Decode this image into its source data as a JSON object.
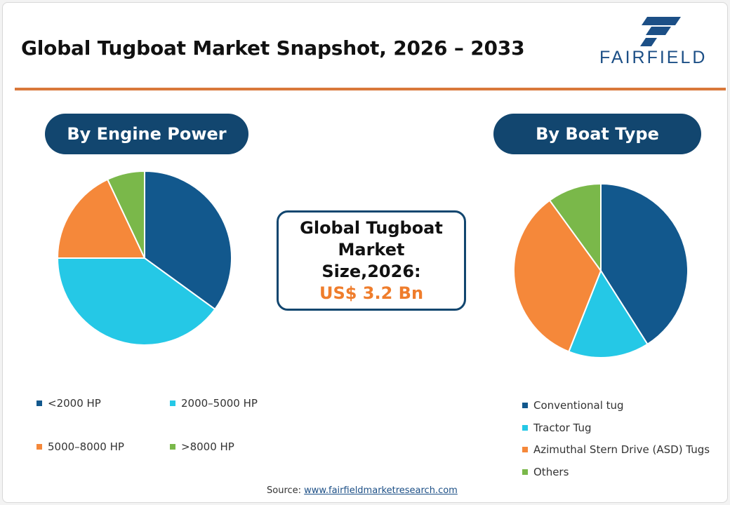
{
  "header": {
    "title": "Global Tugboat Market Snapshot, 2026 – 2033",
    "logo_text": "FAIRFIELD"
  },
  "colors": {
    "navy": "#12466f",
    "accent_orange": "#d9783a",
    "value_orange": "#ef7d2c"
  },
  "center_box": {
    "title": "Global Tugboat Market Size,2026:",
    "value": "US$ 3.2 Bn"
  },
  "footer": {
    "source_label": "Source:",
    "source_link": "www.fairfieldmarketresearch.com"
  },
  "chart_data": [
    {
      "type": "pie",
      "title": "By Engine Power",
      "categories": [
        "<2000 HP",
        "2000–5000 HP",
        "5000–8000 HP",
        ">8000 HP"
      ],
      "values": [
        35,
        40,
        18,
        7
      ],
      "colors": [
        "#12588d",
        "#25c8e6",
        "#f5883a",
        "#7ab84a"
      ],
      "start_angle_deg": 0,
      "legend_position": "bottom"
    },
    {
      "type": "pie",
      "title": "By Boat Type",
      "categories": [
        "Conventional tug",
        "Tractor Tug",
        "Azimuthal Stern Drive (ASD) Tugs",
        "Others"
      ],
      "values": [
        41,
        15,
        34,
        10
      ],
      "colors": [
        "#12588d",
        "#25c8e6",
        "#f5883a",
        "#7ab84a"
      ],
      "start_angle_deg": 0,
      "legend_position": "bottom-right"
    }
  ]
}
